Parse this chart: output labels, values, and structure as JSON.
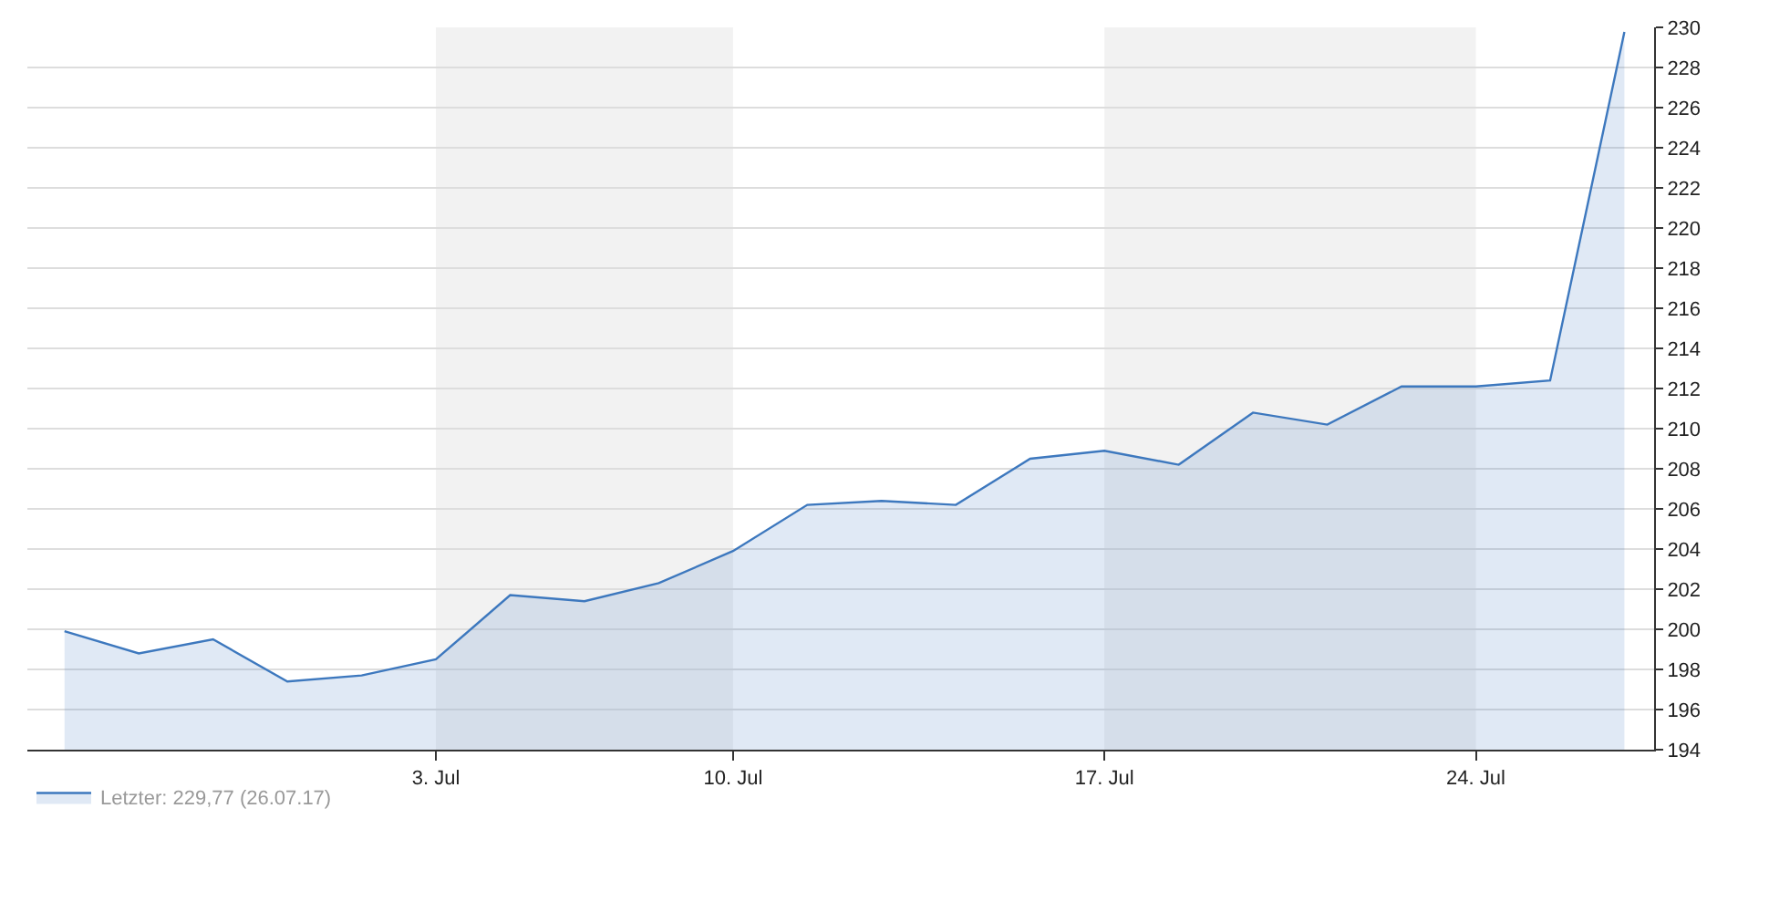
{
  "chart_data": {
    "type": "area",
    "categories": [
      null,
      null,
      null,
      null,
      null,
      "3. Jul",
      null,
      null,
      null,
      "10. Jul",
      null,
      null,
      null,
      null,
      "17. Jul",
      null,
      null,
      null,
      null,
      "24. Jul",
      null,
      null
    ],
    "series": [
      {
        "name": "Letzter: 229,77 (26.07.17)",
        "color": "#3d78be",
        "values": [
          199.9,
          198.8,
          199.5,
          197.4,
          197.7,
          198.5,
          201.7,
          201.4,
          202.3,
          203.9,
          206.2,
          206.4,
          206.2,
          208.5,
          208.9,
          208.2,
          210.8,
          210.2,
          212.1,
          212.1,
          212.4,
          229.77
        ]
      }
    ],
    "ylim": [
      194,
      230
    ],
    "yticks": [
      194,
      196,
      198,
      200,
      202,
      204,
      206,
      208,
      210,
      212,
      214,
      216,
      218,
      220,
      222,
      224,
      226,
      228,
      230
    ],
    "bands": [
      {
        "axis": "x",
        "from": "3. Jul",
        "to": "10. Jul",
        "color": "#f2f2f2"
      },
      {
        "axis": "x",
        "from": "17. Jul",
        "to": "24. Jul",
        "color": "#f2f2f2"
      }
    ],
    "grid": "y",
    "legend": "bottom left",
    "marker": "none",
    "line_style": "solid"
  }
}
